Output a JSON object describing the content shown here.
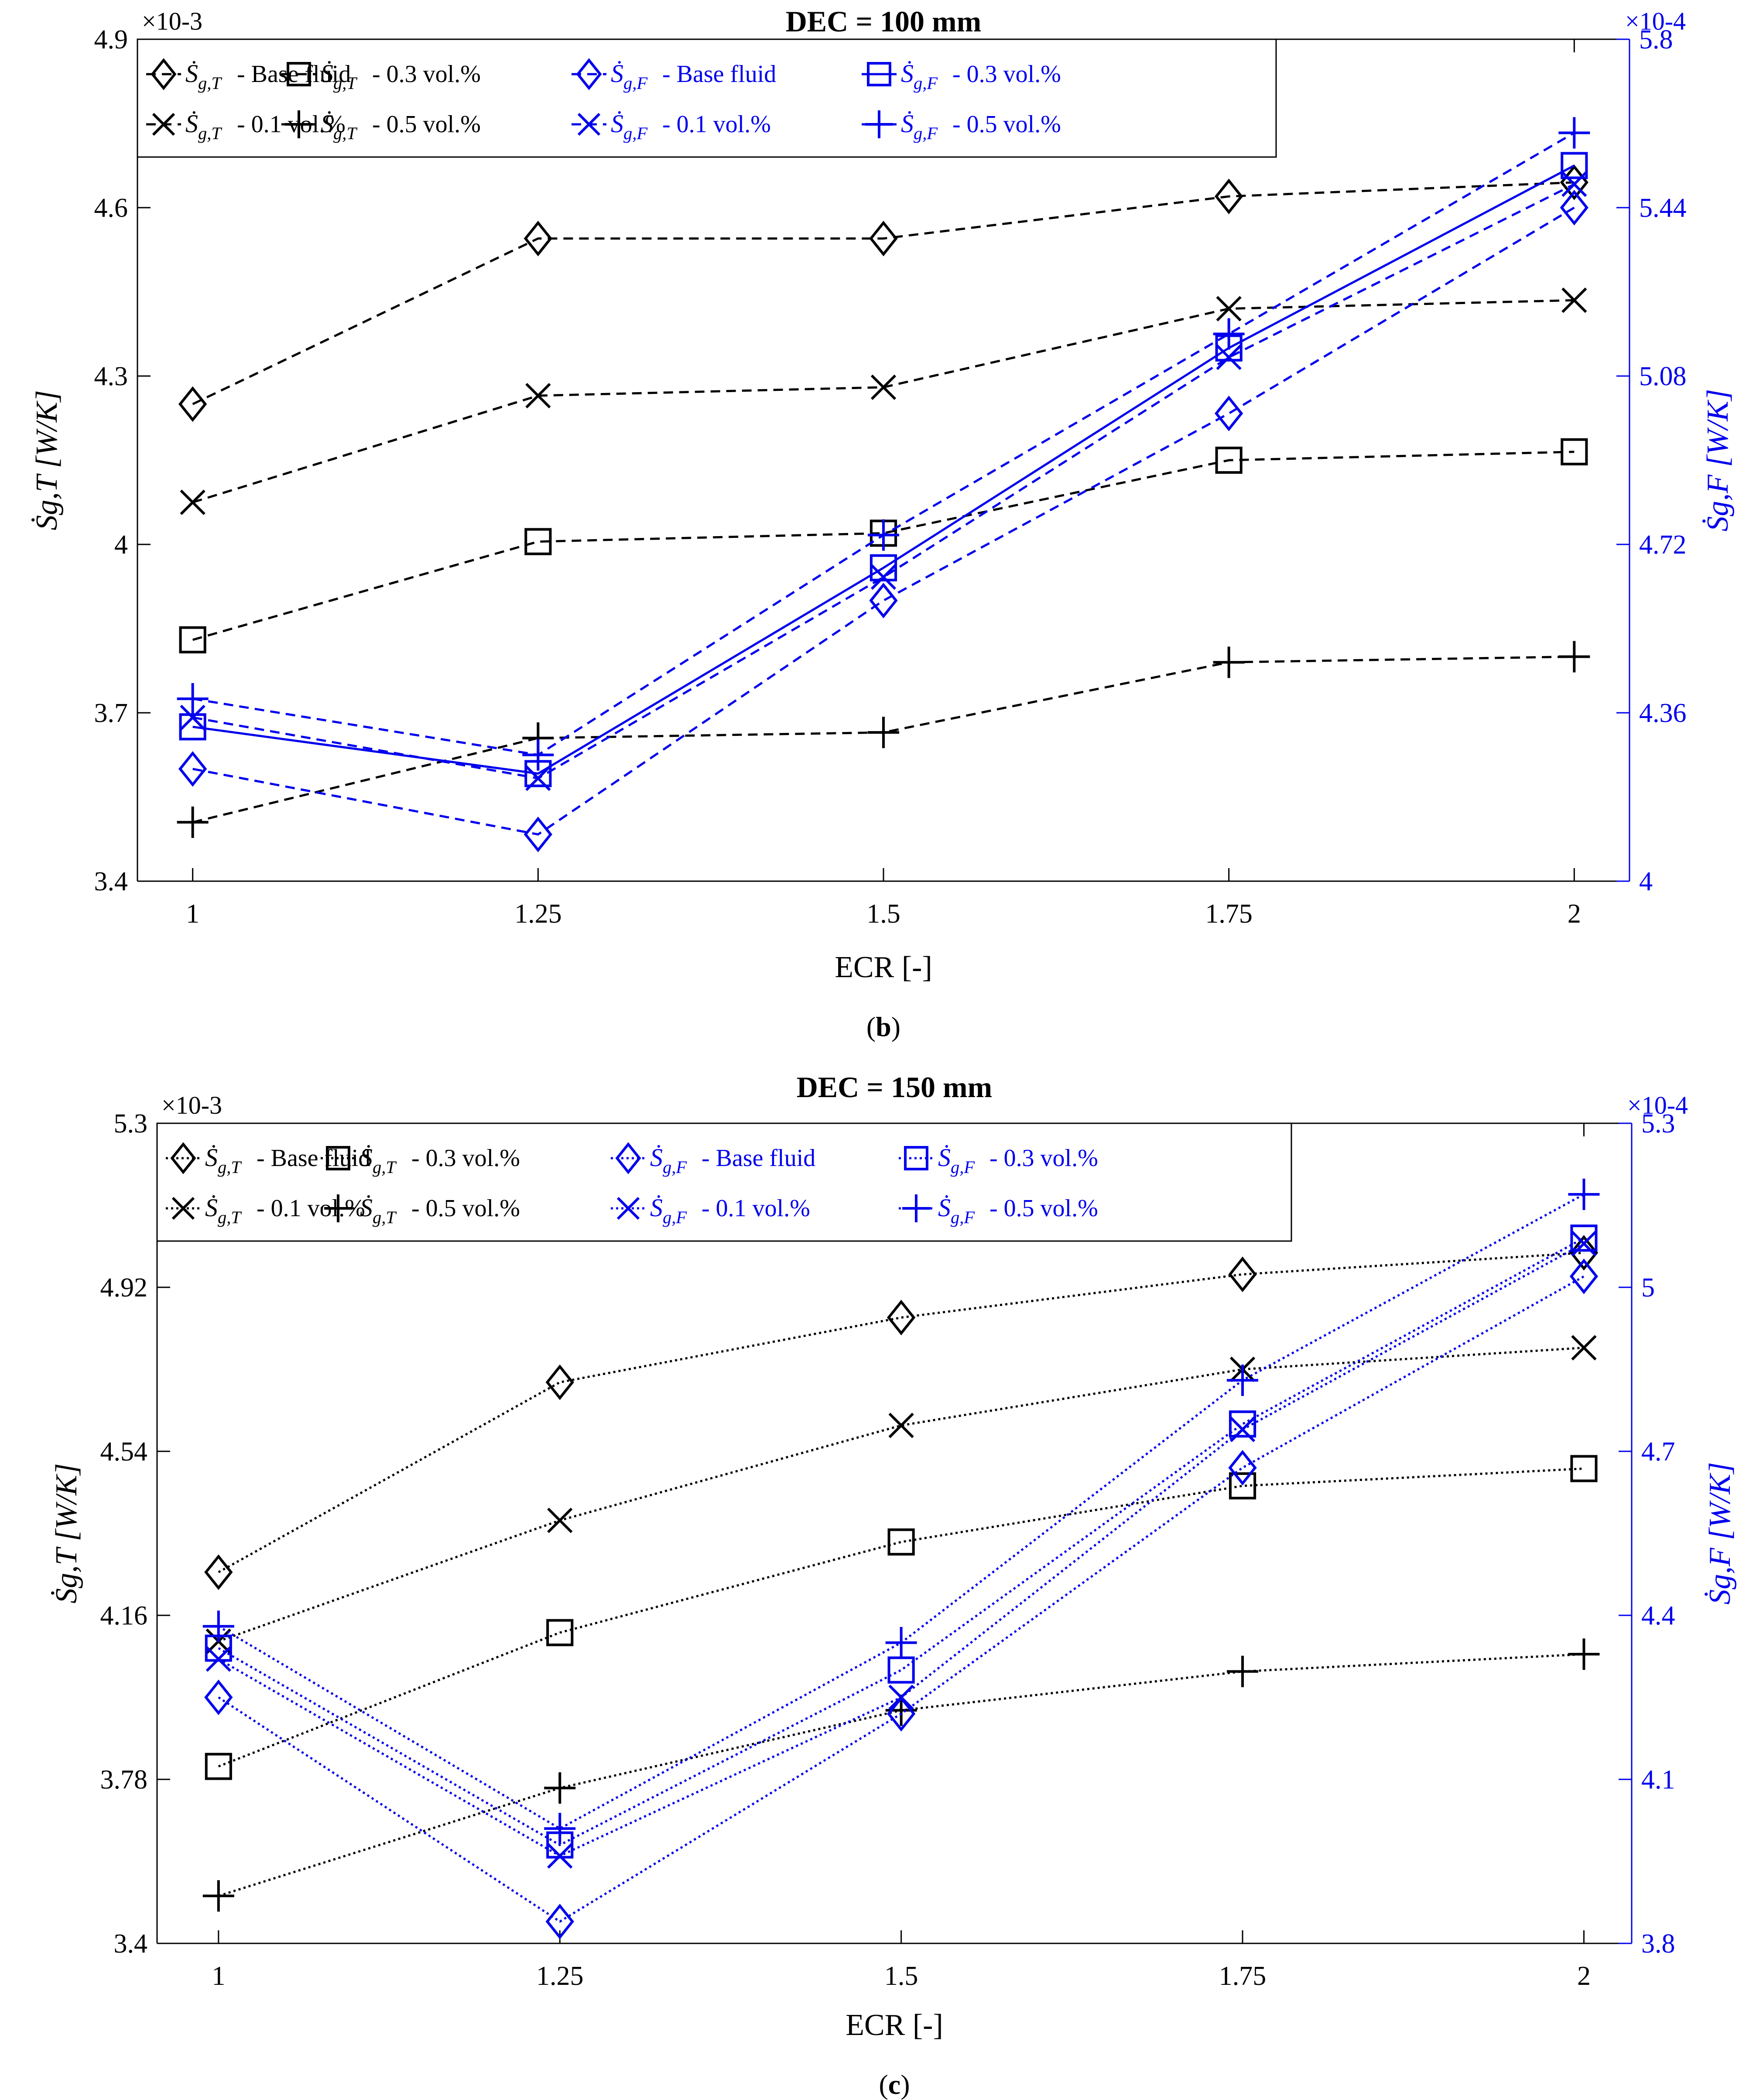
{
  "figure": {
    "panels_order": [
      "b",
      "c"
    ]
  },
  "chart_data": [
    {
      "type": "line",
      "title": "DEC = 100 mm",
      "caption_letter": "b",
      "xlabel": "ECR [-]",
      "ylabel_left": "Ṡg,T [W/K]",
      "ylabel_right": "Ṡg,F [W/K]",
      "left_multiplier": "×10-3",
      "right_multiplier": "×10-4",
      "x": [
        1,
        1.25,
        1.5,
        1.75,
        2
      ],
      "x_tick_labels": [
        "1",
        "1.25",
        "1.5",
        "1.75",
        "2"
      ],
      "xlim": [
        0.96,
        2.04
      ],
      "ylim_left": [
        3.4,
        4.9
      ],
      "ylim_right": [
        4.0,
        5.8
      ],
      "y_left_ticks": [
        "3.4",
        "3.7",
        "4",
        "4.3",
        "4.6",
        "4.9"
      ],
      "y_right_ticks": [
        "4",
        "4.36",
        "4.72",
        "5.08",
        "5.44",
        "5.8"
      ],
      "y_left_tick_values": [
        3.4,
        3.7,
        4.0,
        4.3,
        4.6,
        4.9
      ],
      "y_right_tick_values": [
        4.0,
        4.36,
        4.72,
        5.08,
        5.44,
        5.8
      ],
      "legend_position": "top-left",
      "series": [
        {
          "name": "Ṡg,T - Base fluid",
          "axis": "left",
          "color": "#000000",
          "marker": "diamond",
          "dash": "dashed",
          "values": [
            4.25,
            4.545,
            4.545,
            4.62,
            4.645
          ]
        },
        {
          "name": "Ṡg,T - 0.1 vol.%",
          "axis": "left",
          "color": "#000000",
          "marker": "x",
          "dash": "dashed",
          "values": [
            4.075,
            4.265,
            4.28,
            4.42,
            4.435
          ]
        },
        {
          "name": "Ṡg,T - 0.3 vol.%",
          "axis": "left",
          "color": "#000000",
          "marker": "square",
          "dash": "dashed",
          "values": [
            3.83,
            4.005,
            4.02,
            4.15,
            4.165
          ]
        },
        {
          "name": "Ṡg,T - 0.5 vol.%",
          "axis": "left",
          "color": "#000000",
          "marker": "plus",
          "dash": "dashed",
          "values": [
            3.505,
            3.655,
            3.665,
            3.79,
            3.8
          ]
        },
        {
          "name": "Ṡg,F - Base fluid",
          "axis": "right",
          "color": "#0000ee",
          "marker": "diamond",
          "dash": "dashed",
          "values": [
            4.24,
            4.1,
            4.6,
            5.0,
            5.44
          ]
        },
        {
          "name": "Ṡg,F - 0.1 vol.%",
          "axis": "right",
          "color": "#0000ee",
          "marker": "x",
          "dash": "dashed",
          "values": [
            4.35,
            4.22,
            4.65,
            5.12,
            5.49
          ]
        },
        {
          "name": "Ṡg,F - 0.3 vol.%",
          "axis": "right",
          "color": "#0000ee",
          "marker": "square",
          "dash": "solid",
          "values": [
            4.33,
            4.23,
            4.67,
            5.14,
            5.53
          ]
        },
        {
          "name": "Ṡg,F - 0.5 vol.%",
          "axis": "right",
          "color": "#0000ee",
          "marker": "plus",
          "dash": "dashed",
          "values": [
            4.39,
            4.27,
            4.74,
            5.17,
            5.6
          ]
        }
      ],
      "legend_layout": [
        {
          "sub": "T",
          "text": " - Base fluid",
          "color": "#000000",
          "marker": "diamond",
          "dash": "dashed"
        },
        {
          "sub": "T",
          "text": " - 0.3 vol.%",
          "color": "#000000",
          "marker": "square",
          "dash": "dashed"
        },
        {
          "sub": "F",
          "text": " - Base fluid",
          "color": "#0000ee",
          "marker": "diamond",
          "dash": "dashed"
        },
        {
          "sub": "F",
          "text": " - 0.3 vol.%",
          "color": "#0000ee",
          "marker": "square",
          "dash": "solid"
        },
        {
          "sub": "T",
          "text": " - 0.1 vol.%",
          "color": "#000000",
          "marker": "x",
          "dash": "dashed"
        },
        {
          "sub": "T",
          "text": " - 0.5 vol.%",
          "color": "#000000",
          "marker": "plus",
          "dash": "dashed"
        },
        {
          "sub": "F",
          "text": " - 0.1 vol.%",
          "color": "#0000ee",
          "marker": "x",
          "dash": "dashed"
        },
        {
          "sub": "F",
          "text": " - 0.5 vol.%",
          "color": "#0000ee",
          "marker": "plus",
          "dash": "dashed"
        }
      ]
    },
    {
      "type": "line",
      "title": "DEC = 150 mm",
      "caption_letter": "c",
      "xlabel": "ECR [-]",
      "ylabel_left": "Ṡg,T [W/K]",
      "ylabel_right": "Ṡg,F [W/K]",
      "left_multiplier": "×10-3",
      "right_multiplier": "×10-4",
      "x": [
        1,
        1.25,
        1.5,
        1.75,
        2
      ],
      "x_tick_labels": [
        "1",
        "1.25",
        "1.5",
        "1.75",
        "2"
      ],
      "xlim": [
        0.955,
        2.035
      ],
      "ylim_left": [
        3.4,
        5.3
      ],
      "ylim_right": [
        3.8,
        5.3
      ],
      "y_left_ticks": [
        "3.4",
        "3.78",
        "4.16",
        "4.54",
        "4.92",
        "5.3"
      ],
      "y_right_ticks": [
        "3.8",
        "4.1",
        "4.4",
        "4.7",
        "5",
        "5.3"
      ],
      "y_left_tick_values": [
        3.4,
        3.78,
        4.16,
        4.54,
        4.92,
        5.3
      ],
      "y_right_tick_values": [
        3.8,
        4.1,
        4.4,
        4.7,
        5.0,
        5.3
      ],
      "legend_position": "top-left",
      "series": [
        {
          "name": "Ṡg,T - Base fluid",
          "axis": "left",
          "color": "#000000",
          "marker": "diamond",
          "dash": "dotted",
          "values": [
            4.26,
            4.7,
            4.85,
            4.95,
            5.0
          ]
        },
        {
          "name": "Ṡg,T - 0.1 vol.%",
          "axis": "left",
          "color": "#000000",
          "marker": "x",
          "dash": "dotted",
          "values": [
            4.1,
            4.38,
            4.6,
            4.73,
            4.78
          ]
        },
        {
          "name": "Ṡg,T - 0.3 vol.%",
          "axis": "left",
          "color": "#000000",
          "marker": "square",
          "dash": "dotted",
          "values": [
            3.81,
            4.12,
            4.33,
            4.46,
            4.5
          ]
        },
        {
          "name": "Ṡg,T - 0.5 vol.%",
          "axis": "left",
          "color": "#000000",
          "marker": "plus",
          "dash": "dotted",
          "values": [
            3.51,
            3.76,
            3.94,
            4.03,
            4.07
          ]
        },
        {
          "name": "Ṡg,F - Base fluid",
          "axis": "right",
          "color": "#0000ee",
          "marker": "diamond",
          "dash": "dotted",
          "values": [
            4.25,
            3.84,
            4.22,
            4.67,
            5.02
          ]
        },
        {
          "name": "Ṡg,F - 0.1 vol.%",
          "axis": "right",
          "color": "#0000ee",
          "marker": "x",
          "dash": "dotted",
          "values": [
            4.32,
            3.96,
            4.25,
            4.74,
            5.08
          ]
        },
        {
          "name": "Ṡg,F - 0.3 vol.%",
          "axis": "right",
          "color": "#0000ee",
          "marker": "square",
          "dash": "dotted",
          "values": [
            4.34,
            3.98,
            4.3,
            4.75,
            5.09
          ]
        },
        {
          "name": "Ṡg,F - 0.5 vol.%",
          "axis": "right",
          "color": "#0000ee",
          "marker": "plus",
          "dash": "dotted",
          "values": [
            4.38,
            4.01,
            4.35,
            4.83,
            5.17
          ]
        }
      ],
      "legend_layout": [
        {
          "sub": "T",
          "text": " - Base fluid",
          "color": "#000000",
          "marker": "diamond",
          "dash": "dotted"
        },
        {
          "sub": "T",
          "text": " - 0.3 vol.%",
          "color": "#000000",
          "marker": "square",
          "dash": "dotted"
        },
        {
          "sub": "F",
          "text": " - Base fluid",
          "color": "#0000ee",
          "marker": "diamond",
          "dash": "dotted"
        },
        {
          "sub": "F",
          "text": " - 0.3 vol.%",
          "color": "#0000ee",
          "marker": "square",
          "dash": "dotted"
        },
        {
          "sub": "T",
          "text": " - 0.1 vol.%",
          "color": "#000000",
          "marker": "x",
          "dash": "dotted"
        },
        {
          "sub": "T",
          "text": " - 0.5 vol.%",
          "color": "#000000",
          "marker": "plus",
          "dash": "dotted"
        },
        {
          "sub": "F",
          "text": " - 0.1 vol.%",
          "color": "#0000ee",
          "marker": "x",
          "dash": "dotted"
        },
        {
          "sub": "F",
          "text": " - 0.5 vol.%",
          "color": "#0000ee",
          "marker": "plus",
          "dash": "dotted"
        }
      ]
    }
  ]
}
